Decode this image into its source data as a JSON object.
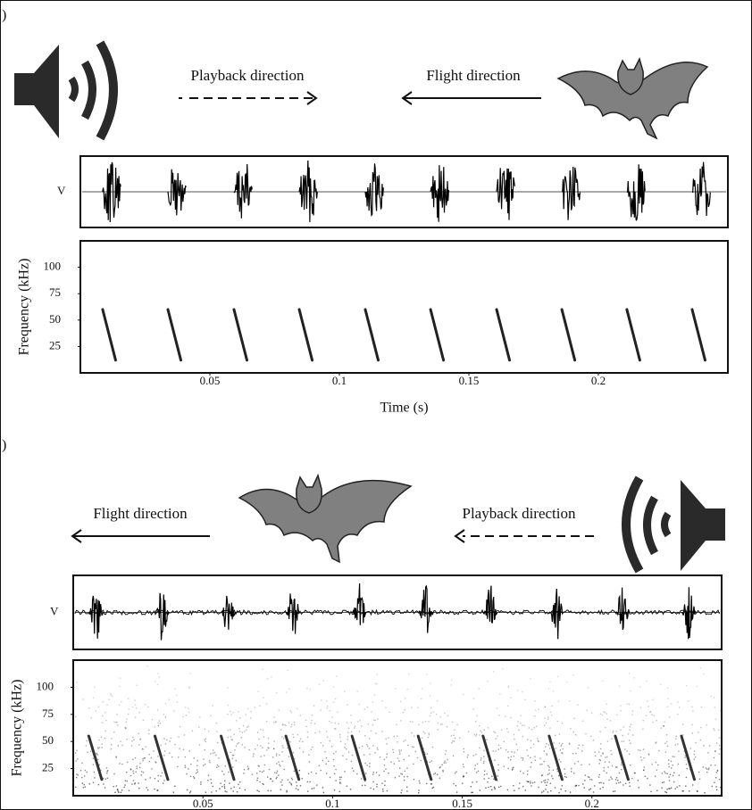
{
  "chart_data": [
    {
      "type": "spectrogram",
      "panel_label": ")",
      "annotations": [
        "Playback direction",
        "Flight direction"
      ],
      "waveform_label": "V",
      "ylabel": "Frequency (kHz)",
      "xlabel": "Time (s)",
      "xlim": [
        0,
        0.25
      ],
      "ylim": [
        0,
        125
      ],
      "xticks": [
        0.05,
        0.1,
        0.15,
        0.2
      ],
      "yticks": [
        25,
        50,
        75,
        100
      ],
      "call_times": [
        0.0086,
        0.0338,
        0.0593,
        0.0845,
        0.11,
        0.1352,
        0.1607,
        0.1859,
        0.211,
        0.2362
      ],
      "call_duration": 0.005,
      "call_start_khz": 60,
      "call_end_khz": 12,
      "color": "#222222"
    },
    {
      "type": "spectrogram",
      "panel_label": ")",
      "annotations": [
        "Flight direction",
        "Playback direction"
      ],
      "waveform_label": "V",
      "ylabel": "Frequency (kHz)",
      "xlim": [
        0,
        0.25
      ],
      "ylim": [
        0,
        125
      ],
      "xticks": [
        0.05,
        0.1,
        0.15,
        0.2
      ],
      "yticks": [
        25,
        50,
        75,
        100
      ],
      "call_times": [
        0.006,
        0.0315,
        0.057,
        0.082,
        0.1075,
        0.133,
        0.158,
        0.1835,
        0.209,
        0.2345
      ],
      "call_duration": 0.005,
      "call_start_khz": 55,
      "call_end_khz": 15,
      "color": "#333333"
    }
  ]
}
